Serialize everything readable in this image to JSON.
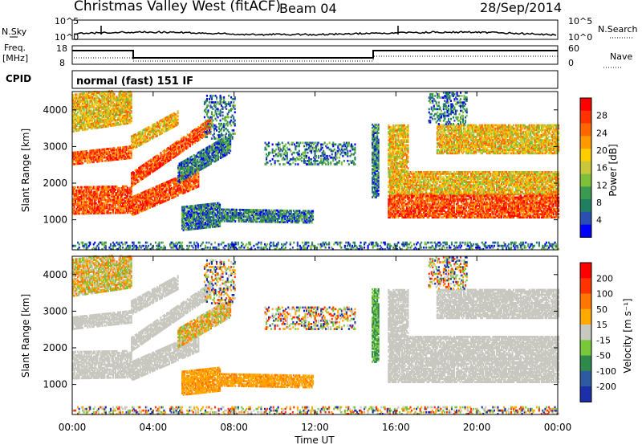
{
  "header": {
    "station": "Christmas Valley West (fitACF)",
    "beam": "Beam 04",
    "date": "28/Sep/2014"
  },
  "noise_panel": {
    "left_label": "N.Sky",
    "right_label": "N.Search",
    "ytick_top": "10^5",
    "ytick_bottom": "10^0",
    "rtick_top": "10^5",
    "rtick_bottom": "10^0"
  },
  "freq_panel": {
    "left_label_1": "Freq.",
    "left_label_2": "[MHz]",
    "right_label": "Nave",
    "ytick_top": "18",
    "ytick_bottom": "8",
    "rtick_top": "60",
    "rtick_bottom": "0"
  },
  "cpid_panel": {
    "label": "CPID",
    "value": "normal (fast) 151 IF"
  },
  "chart_data": [
    {
      "type": "heatmap",
      "name": "power",
      "ylabel": "Slant Range [km]",
      "yticks": [
        "4000",
        "3000",
        "2000",
        "1000"
      ],
      "ytick_values": [
        4000,
        3000,
        2000,
        1000
      ],
      "ylim": [
        180,
        4500
      ],
      "xlim_hours": [
        0,
        24
      ],
      "colorbar": {
        "label": "Power [dB]",
        "ticks": [
          "28",
          "24",
          "20",
          "16",
          "12",
          "8",
          "4"
        ],
        "tick_values": [
          28,
          24,
          20,
          16,
          12,
          8,
          4
        ],
        "range": [
          0,
          30
        ],
        "colors": [
          "#0000ff",
          "#2a4fb0",
          "#1f7f60",
          "#3a9a50",
          "#7fbf3a",
          "#c8c83a",
          "#ffcc00",
          "#ff9900",
          "#ff6600",
          "#ff3300",
          "#ff0000"
        ]
      }
    },
    {
      "type": "heatmap",
      "name": "velocity",
      "ylabel": "Slant Range [km]",
      "yticks": [
        "4000",
        "3000",
        "2000",
        "1000"
      ],
      "ytick_values": [
        4000,
        3000,
        2000,
        1000
      ],
      "ylim": [
        180,
        4500
      ],
      "xlim_hours": [
        0,
        24
      ],
      "colorbar": {
        "label": "Velocity [m s⁻¹]",
        "ticks": [
          "200",
          "100",
          "50",
          "15",
          "-15",
          "-50",
          "-100",
          "-200"
        ],
        "tick_values": [
          200,
          100,
          50,
          15,
          -15,
          -50,
          -100,
          -200
        ],
        "colors": [
          "#1b2fa8",
          "#2d5aa0",
          "#2e8a4a",
          "#77c83a",
          "#c8c8c0",
          "#ffaa00",
          "#ff7700",
          "#ff3300",
          "#ff0000"
        ]
      },
      "ground_scatter_color": "#c8c8c0"
    }
  ],
  "x_axis": {
    "label": "Time UT",
    "ticks": [
      "00:00",
      "04:00",
      "08:00",
      "12:00",
      "16:00",
      "20:00",
      "00:00"
    ],
    "tick_hours": [
      0,
      4,
      8,
      12,
      16,
      20,
      24
    ]
  },
  "echo_regions": [
    {
      "t0": 0.0,
      "t1": 2.9,
      "r0": 1150,
      "r1": 1900,
      "slope": 10,
      "power": "high",
      "vel": "ground"
    },
    {
      "t0": 0.0,
      "t1": 2.9,
      "r0": 2500,
      "r1": 2850,
      "slope": 60,
      "power": "high",
      "vel": "ground"
    },
    {
      "t0": 0.0,
      "t1": 2.9,
      "r0": 3400,
      "r1": 4400,
      "slope": 80,
      "power": "medium",
      "vel": "mixed"
    },
    {
      "t0": 2.9,
      "t1": 6.2,
      "r0": 1100,
      "r1": 1600,
      "slope": 240,
      "power": "high",
      "vel": "ground"
    },
    {
      "t0": 2.9,
      "t1": 6.8,
      "r0": 1900,
      "r1": 2300,
      "slope": 380,
      "power": "high",
      "vel": "ground"
    },
    {
      "t0": 2.9,
      "t1": 5.2,
      "r0": 2900,
      "r1": 3300,
      "slope": 300,
      "power": "medium",
      "vel": "ground"
    },
    {
      "t0": 5.2,
      "t1": 7.8,
      "r0": 2000,
      "r1": 2500,
      "slope": 320,
      "power": "low",
      "vel": "mixed"
    },
    {
      "t0": 5.4,
      "t1": 7.3,
      "r0": 700,
      "r1": 1350,
      "slope": 60,
      "power": "low",
      "vel": "negative"
    },
    {
      "t0": 7.3,
      "t1": 11.9,
      "r0": 950,
      "r1": 1300,
      "slope": -10,
      "power": "low",
      "vel": "negative"
    },
    {
      "t0": 6.5,
      "t1": 8.0,
      "r0": 3200,
      "r1": 4400,
      "slope": 0,
      "power": "low",
      "vel": "scatter"
    },
    {
      "t0": 9.5,
      "t1": 14.0,
      "r0": 2500,
      "r1": 3100,
      "slope": 0,
      "power": "low",
      "vel": "scatter"
    },
    {
      "t0": 14.8,
      "t1": 15.15,
      "r0": 1600,
      "r1": 3600,
      "slope": 0,
      "power": "low",
      "vel": "positive"
    },
    {
      "t0": 15.6,
      "t1": 24.0,
      "r0": 1050,
      "r1": 1700,
      "slope": 0,
      "power": "high",
      "vel": "ground"
    },
    {
      "t0": 15.6,
      "t1": 24.0,
      "r0": 1700,
      "r1": 2300,
      "slope": 0,
      "power": "medium",
      "vel": "ground"
    },
    {
      "t0": 15.6,
      "t1": 16.6,
      "r0": 2300,
      "r1": 3600,
      "slope": 0,
      "power": "medium",
      "vel": "ground"
    },
    {
      "t0": 18.0,
      "t1": 24.0,
      "r0": 2800,
      "r1": 3600,
      "slope": 0,
      "power": "medium",
      "vel": "ground"
    },
    {
      "t0": 17.6,
      "t1": 19.5,
      "r0": 3600,
      "r1": 4500,
      "slope": 0,
      "power": "low",
      "vel": "scatter"
    },
    {
      "t0": 0.0,
      "t1": 24.0,
      "r0": 180,
      "r1": 400,
      "slope": 0,
      "power": "low",
      "vel": "scatter"
    }
  ]
}
